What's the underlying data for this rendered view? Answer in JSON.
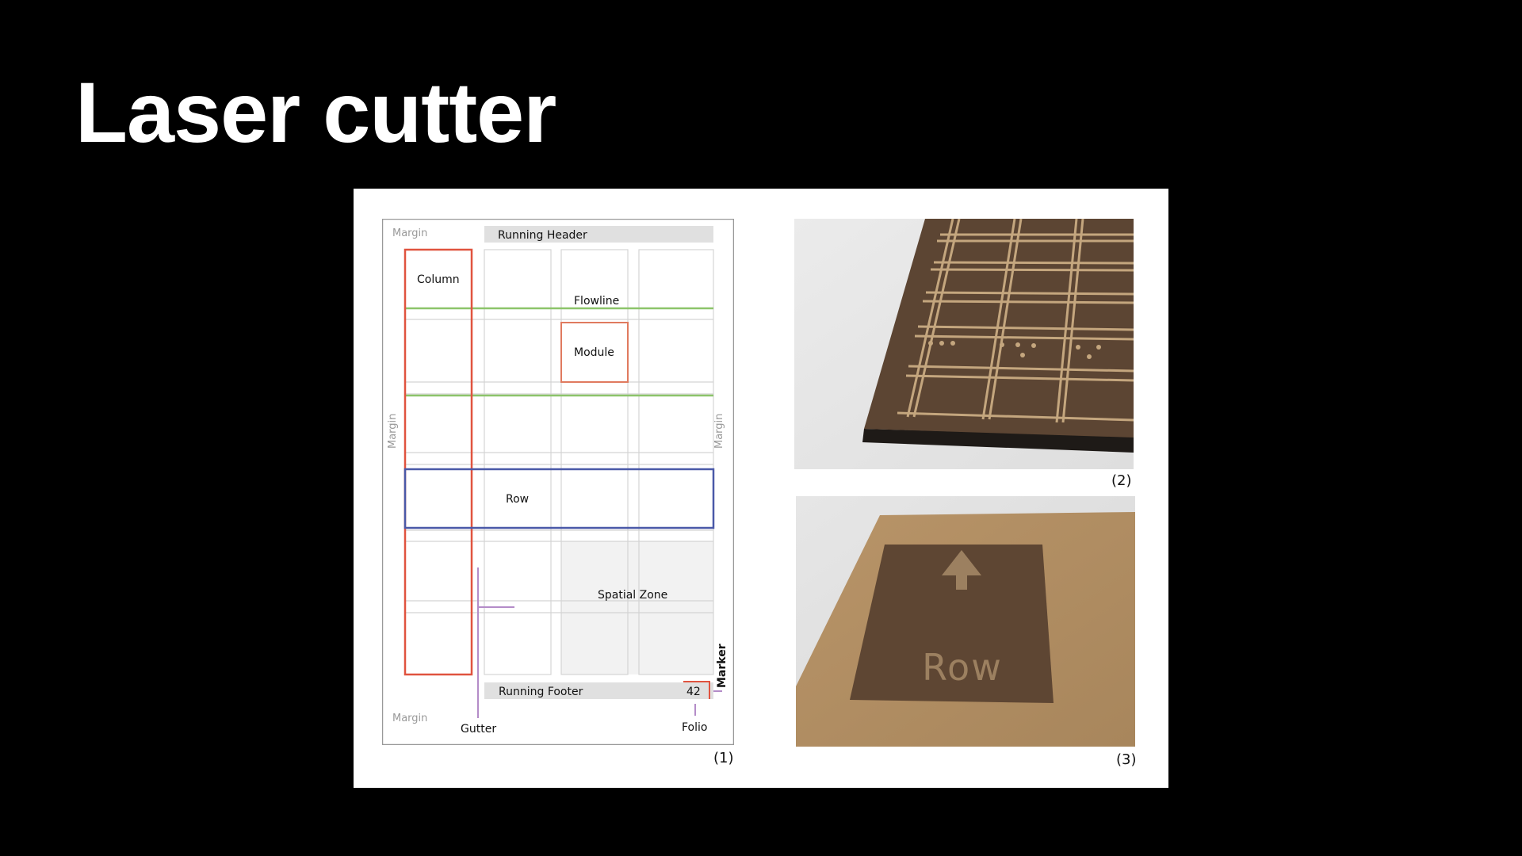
{
  "slide": {
    "title": "Laser cutter"
  },
  "diagram": {
    "labels": {
      "margin_top": "Margin",
      "margin_left": "Margin",
      "margin_right": "Margin",
      "margin_bottom": "Margin",
      "running_header": "Running Header",
      "running_footer": "Running Footer",
      "column": "Column",
      "flowline": "Flowline",
      "module": "Module",
      "row": "Row",
      "spatial_zone": "Spatial Zone",
      "gutter": "Gutter",
      "folio": "Folio",
      "marker": "Marker",
      "page_number": "42"
    },
    "colors": {
      "column": "#e0533f",
      "module": "#e07a5f",
      "flowline": "#8cc46a",
      "row": "#4a59a8",
      "gutter": "#b48cc8",
      "grid": "#d4d4d4",
      "header_bar": "#e0e0e0",
      "spatial_zone": "#f2f2f2"
    }
  },
  "photos": {
    "grid_board": {
      "caption": "(2)"
    },
    "row_sign": {
      "caption": "(3)",
      "engraved_text": "Row",
      "icon": "arrow-up-icon"
    }
  },
  "figure": {
    "caption": "(1)"
  }
}
